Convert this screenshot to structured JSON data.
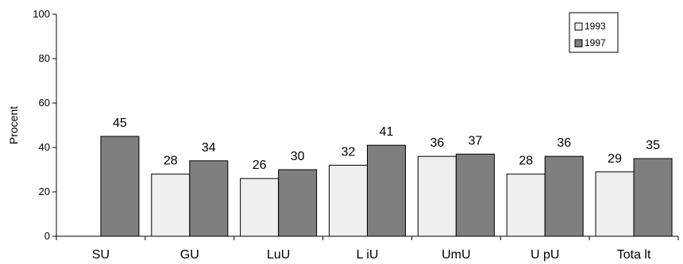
{
  "chart_data": {
    "type": "bar",
    "title": "",
    "xlabel": "",
    "ylabel": "Procent",
    "ylim": [
      0,
      100
    ],
    "yticks": [
      0,
      20,
      40,
      60,
      80,
      100
    ],
    "grid": false,
    "legend_position": "top-right",
    "categories": [
      "SU",
      "GU",
      "LuU",
      "L iU",
      "UmU",
      "U pU",
      "Tota lt"
    ],
    "series": [
      {
        "name": "1993",
        "color": "#efefef",
        "values": [
          null,
          28,
          26,
          32,
          36,
          28,
          29
        ]
      },
      {
        "name": "1997",
        "color": "#7f7f7f",
        "values": [
          45,
          34,
          30,
          41,
          37,
          36,
          35
        ]
      }
    ]
  }
}
